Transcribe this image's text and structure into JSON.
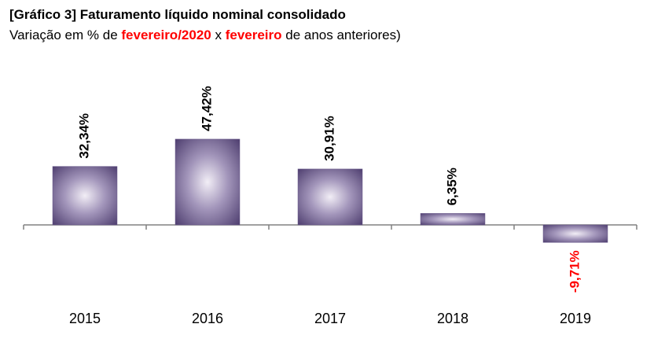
{
  "chart_data": {
    "type": "bar",
    "title": "[Gráfico 3] Faturamento líquido nominal consolidado",
    "subtitle_parts": [
      {
        "text": "Variação em % de ",
        "color": "#000000",
        "bold": false
      },
      {
        "text": "fevereiro/2020",
        "color": "#ff0000",
        "bold": true
      },
      {
        "text": " x ",
        "color": "#000000",
        "bold": false
      },
      {
        "text": "fevereiro",
        "color": "#ff0000",
        "bold": true
      },
      {
        "text": " de anos anteriores)",
        "color": "#000000",
        "bold": false
      }
    ],
    "categories": [
      "2015",
      "2016",
      "2017",
      "2018",
      "2019"
    ],
    "values": [
      32.34,
      47.42,
      30.91,
      6.35,
      -9.71
    ],
    "value_labels": [
      "32,34%",
      "47,42%",
      "30,91%",
      "6,35%",
      "-9,71%"
    ],
    "color": "#6b5b8c",
    "label_color": "#000000",
    "negative_label_color": "#ff0000"
  }
}
